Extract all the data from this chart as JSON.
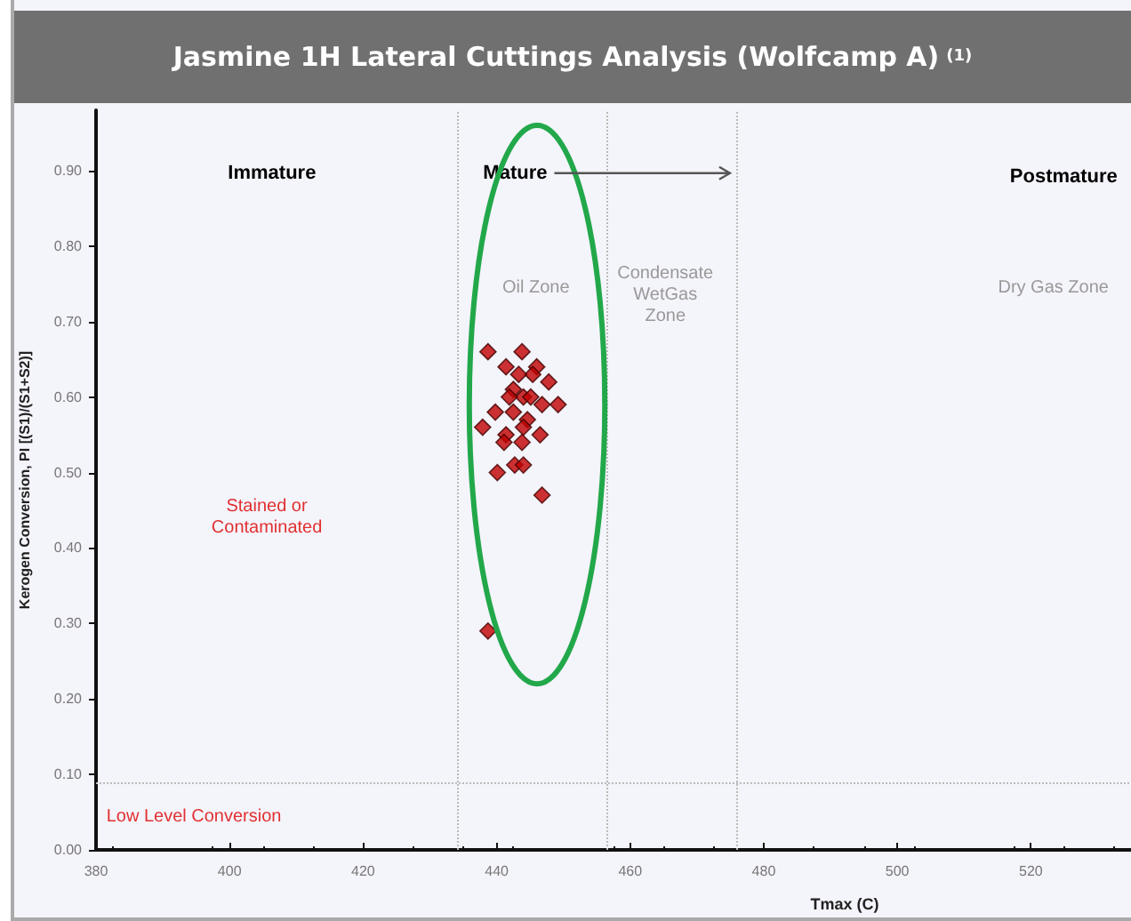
{
  "chart_data": {
    "type": "scatter",
    "title": "Jasmine 1H Lateral Cuttings Analysis (Wolfcamp A)$^{(1)}$",
    "xlabel": "Tmax (C)",
    "ylabel": "Kerogen Conversion, PI [(S1)/(S1+S2)]",
    "x": [
      438.7,
      443.8,
      441.4,
      446,
      447.8,
      442.5,
      444,
      449.2,
      446.8,
      442.5,
      439.8,
      437.9,
      444.6,
      441.4,
      444,
      446.5,
      443.8,
      441.1,
      440.1,
      442.7,
      444,
      446.8,
      438.7,
      445.4,
      443.3,
      441.9,
      445.1
    ],
    "values": [
      0.66,
      0.66,
      0.64,
      0.64,
      0.62,
      0.61,
      0.6,
      0.59,
      0.59,
      0.58,
      0.58,
      0.56,
      0.57,
      0.55,
      0.56,
      0.55,
      0.54,
      0.54,
      0.5,
      0.51,
      0.51,
      0.47,
      0.29,
      0.63,
      0.63,
      0.6,
      0.6
    ],
    "color": "#c00000",
    "marker": "diamond",
    "xlim": [
      380,
      535
    ],
    "xticks": [
      380,
      400,
      420,
      440,
      460,
      480,
      500,
      520
    ],
    "ylim": [
      0,
      0.98
    ],
    "yticks": [
      {
        "value": 0,
        "label": "0.00"
      },
      {
        "value": 0.1,
        "label": "0.10"
      },
      {
        "value": 0.2,
        "label": "0.20"
      },
      {
        "value": 0.3,
        "label": "0.30"
      },
      {
        "value": 0.4,
        "label": "0.40"
      },
      {
        "value": 0.5,
        "label": "0.50"
      },
      {
        "value": 0.6,
        "label": "0.60"
      },
      {
        "value": 0.7,
        "label": "0.70"
      },
      {
        "value": 0.8,
        "label": "0.80"
      },
      {
        "value": 0.9,
        "label": "0.90"
      }
    ],
    "grid": false,
    "ref_lines": [
      {
        "axis": "x",
        "value": 434,
        "color": "#bbbbbb",
        "line_style": "dotted"
      },
      {
        "axis": "x",
        "value": 456.5,
        "color": "#bbbbbb",
        "line_style": "dotted"
      },
      {
        "axis": "x",
        "value": 476,
        "color": "#bbbbbb",
        "line_style": "dotted"
      },
      {
        "axis": "y",
        "value": 0.09,
        "color": "#bbbbbb",
        "line_style": "dotted"
      }
    ],
    "annotations": [
      "Immature",
      "Mature",
      "Postmature",
      "Oil Zone",
      "Condensate\nWetGas\nZone",
      "Dry Gas Zone",
      "Stained or\nContaminated",
      "Low Level Conversion"
    ]
  }
}
